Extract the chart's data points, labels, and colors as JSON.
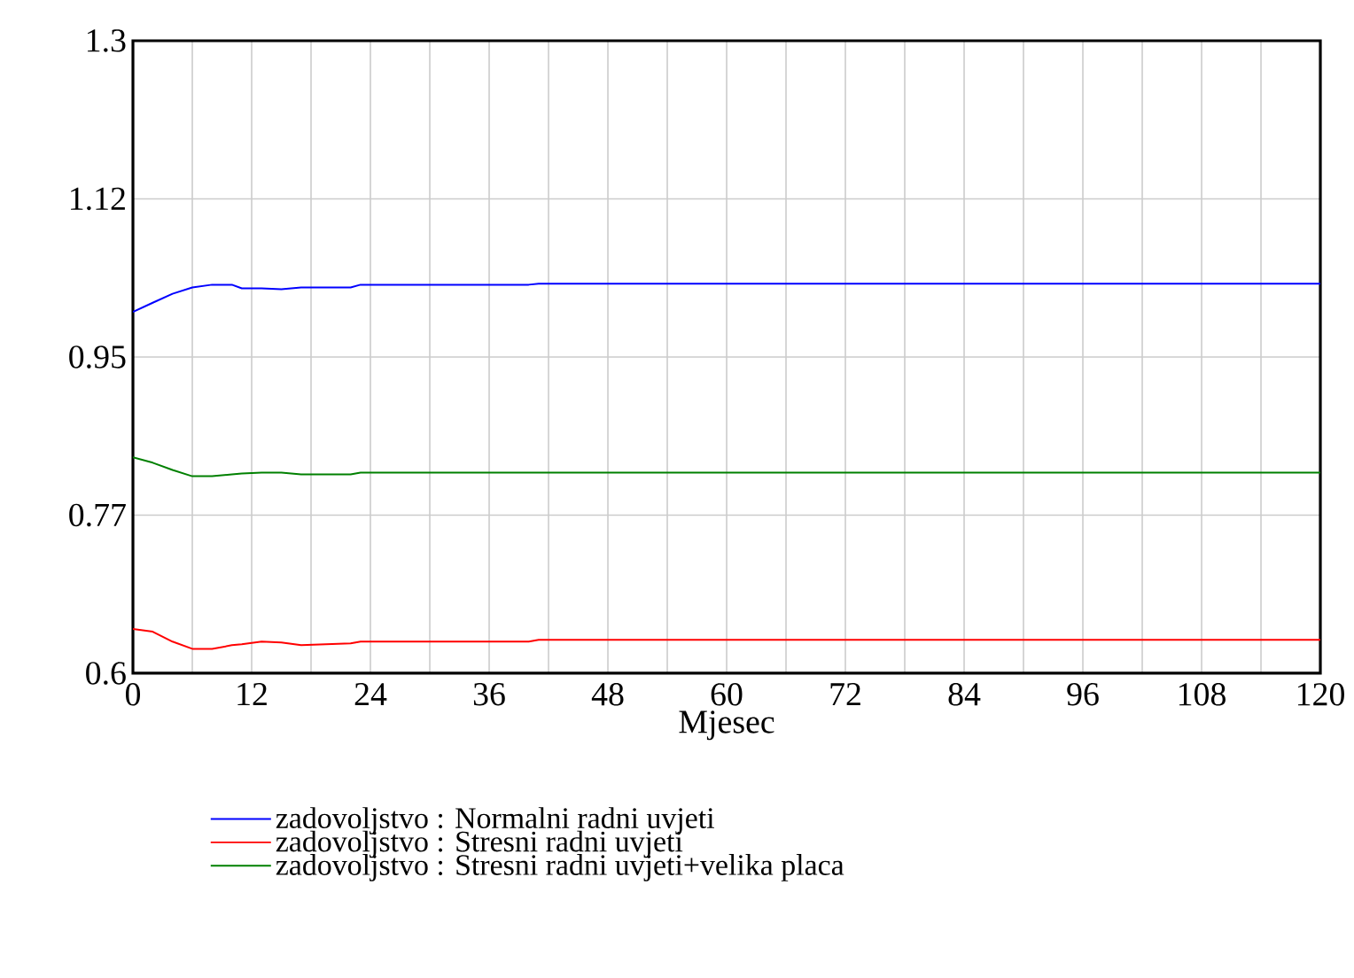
{
  "chart_data": {
    "type": "line",
    "xlabel": "Mjesec",
    "x": [
      0,
      2,
      4,
      6,
      8,
      10,
      11,
      13,
      15,
      17,
      22,
      23,
      40,
      41,
      120
    ],
    "series": [
      {
        "name": "zadovoljstvo : Normalni radni uvjeti",
        "color": "#0000ff",
        "values": [
          1.0,
          1.01,
          1.02,
          1.027,
          1.03,
          1.03,
          1.026,
          1.026,
          1.025,
          1.027,
          1.027,
          1.03,
          1.03,
          1.031,
          1.031
        ]
      },
      {
        "name": "zadovoljstvo : Stresni radni uvjeti",
        "color": "#ff0000",
        "values": [
          0.649,
          0.646,
          0.635,
          0.627,
          0.627,
          0.631,
          0.632,
          0.635,
          0.634,
          0.631,
          0.633,
          0.635,
          0.635,
          0.637,
          0.637
        ]
      },
      {
        "name": "zadovoljstvo : Stresni radni uvjeti+velika placa",
        "color": "#008000",
        "values": [
          0.839,
          0.833,
          0.825,
          0.818,
          0.818,
          0.82,
          0.821,
          0.822,
          0.822,
          0.82,
          0.82,
          0.822,
          0.822,
          0.822,
          0.822
        ]
      }
    ],
    "xlim": [
      0,
      120
    ],
    "xticks": [
      0,
      {
        "value": 6,
        "label": null
      },
      12,
      {
        "value": 18,
        "label": null
      },
      24,
      {
        "value": 30,
        "label": null
      },
      36,
      {
        "value": 42,
        "label": null
      },
      48,
      {
        "value": 54,
        "label": null
      },
      60,
      {
        "value": 66,
        "label": null
      },
      72,
      {
        "value": 78,
        "label": null
      },
      84,
      {
        "value": 90,
        "label": null
      },
      96,
      {
        "value": 102,
        "label": null
      },
      108,
      {
        "value": 114,
        "label": null
      },
      120
    ],
    "ylim": [
      0.6,
      1.3
    ],
    "yticks": [
      0.6,
      {
        "value": 0.775,
        "label": "0.77"
      },
      0.95,
      {
        "value": 1.125,
        "label": "1.12"
      },
      1.3
    ],
    "grid": true,
    "legend": "bottom",
    "marker": "none",
    "line_style": "solid"
  }
}
